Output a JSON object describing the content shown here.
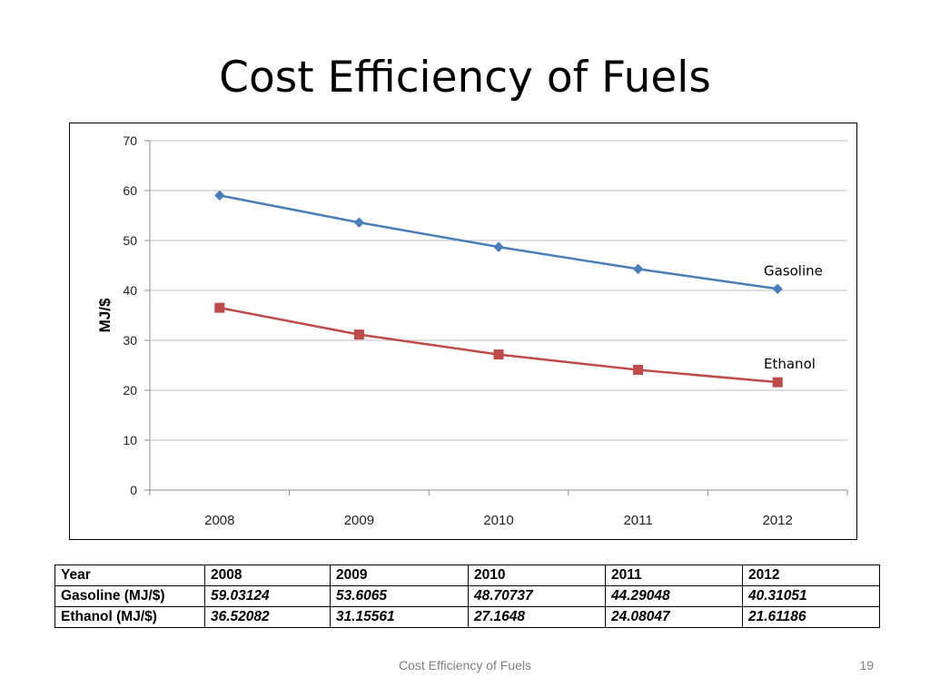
{
  "slide": {
    "title": "Cost Efficiency of Fuels",
    "footer": "Cost Efficiency of Fuels",
    "page_number": "19"
  },
  "chart_data": {
    "type": "line",
    "title": "",
    "xlabel": "",
    "ylabel": "MJ/$",
    "ylim": [
      0,
      70
    ],
    "yticks": [
      0,
      10,
      20,
      30,
      40,
      50,
      60,
      70
    ],
    "grid": true,
    "legend": "none (series labeled inline at right)",
    "categories": [
      "2008",
      "2009",
      "2010",
      "2011",
      "2012"
    ],
    "series": [
      {
        "name": "Gasoline",
        "marker": "diamond",
        "color": "#4a7ebb",
        "values": [
          59.03124,
          53.6065,
          48.70737,
          44.29048,
          40.31051
        ]
      },
      {
        "name": "Ethanol",
        "marker": "square",
        "color": "#be4b48",
        "values": [
          36.52082,
          31.15561,
          27.1648,
          24.08047,
          21.61186
        ]
      }
    ]
  },
  "table": {
    "header": [
      "Year",
      "2008",
      "2009",
      "2010",
      "2011",
      "2012"
    ],
    "rows": [
      {
        "label": "Gasoline (MJ/$)",
        "values": [
          "59.03124",
          "53.6065",
          "48.70737",
          "44.29048",
          "40.31051"
        ]
      },
      {
        "label": "Ethanol (MJ/$)",
        "values": [
          "36.52082",
          "31.15561",
          "27.1648",
          "24.08047",
          "21.61186"
        ]
      }
    ]
  }
}
